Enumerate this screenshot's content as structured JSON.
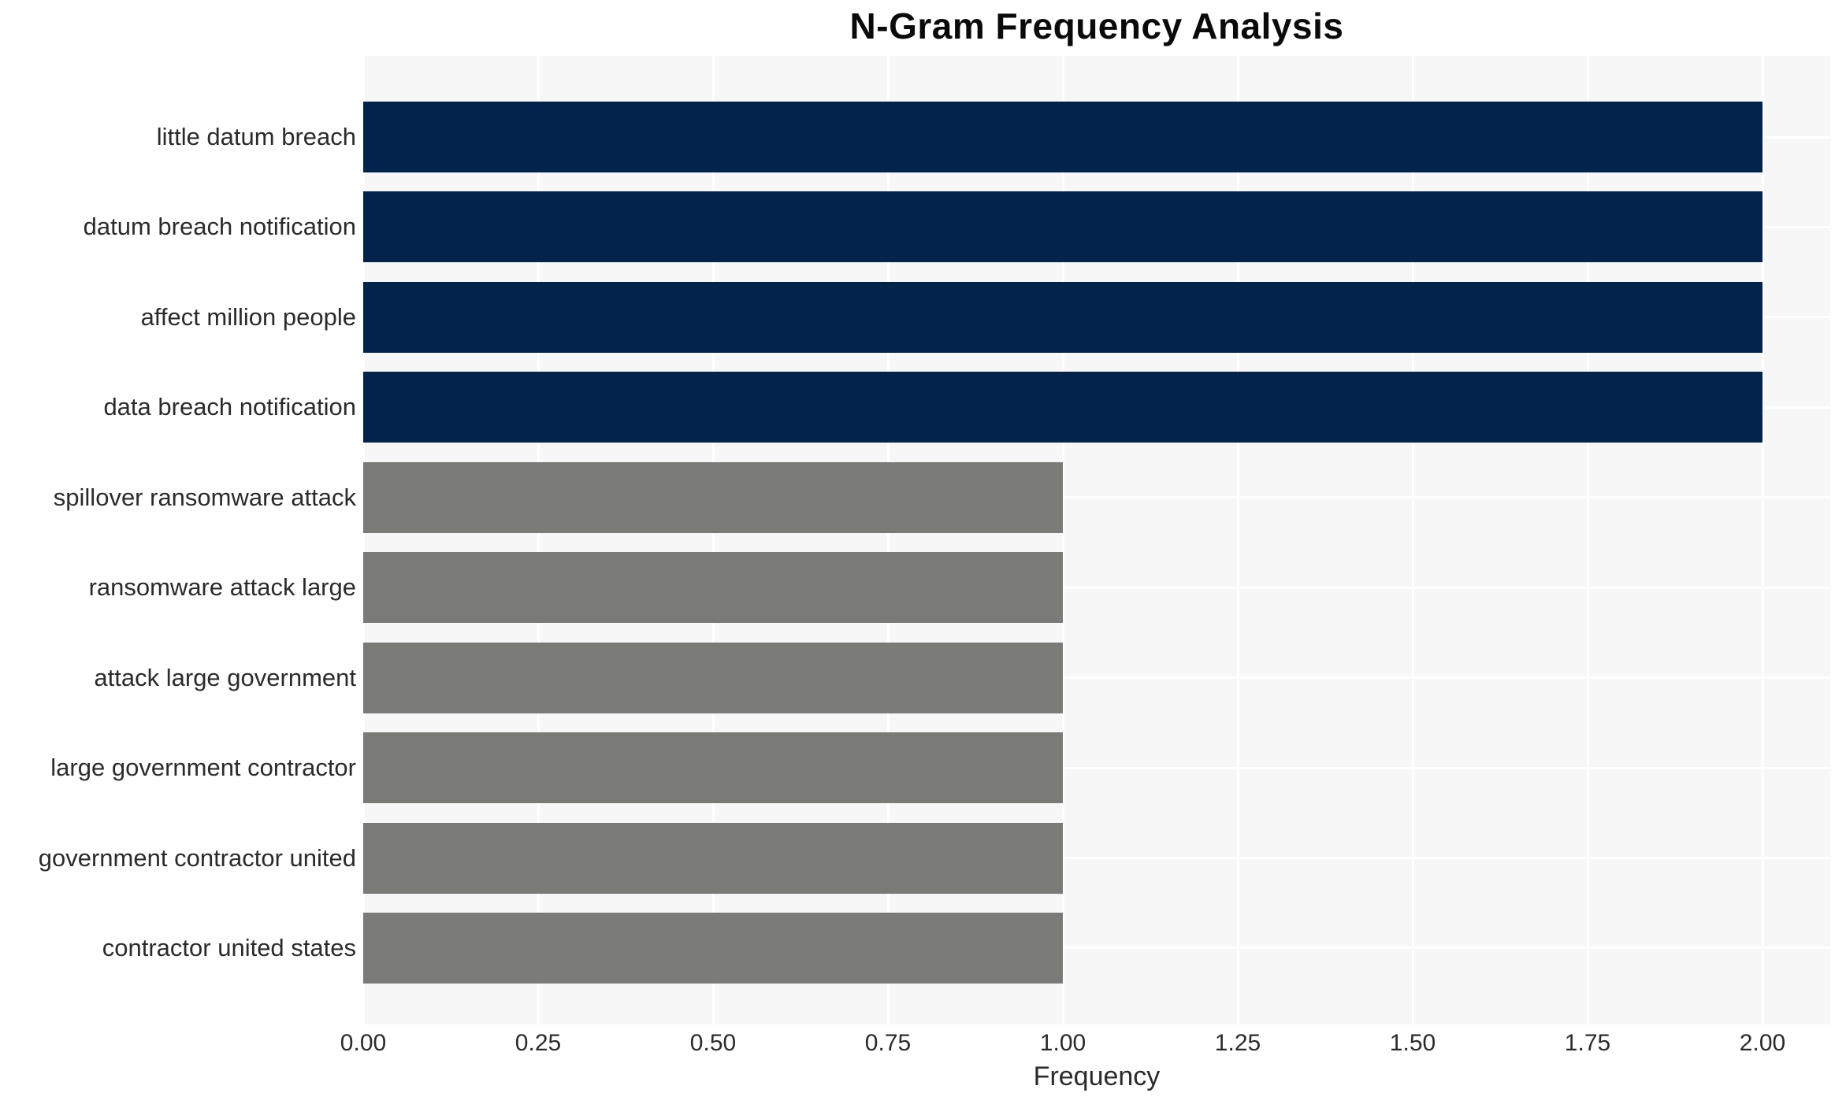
{
  "chart_data": {
    "type": "bar",
    "orientation": "horizontal",
    "title": "N-Gram Frequency Analysis",
    "xlabel": "Frequency",
    "ylabel": "",
    "categories": [
      "little datum breach",
      "datum breach notification",
      "affect million people",
      "data breach notification",
      "spillover ransomware attack",
      "ransomware attack large",
      "attack large government",
      "large government contractor",
      "government contractor united",
      "contractor united states"
    ],
    "values": [
      2,
      2,
      2,
      2,
      1,
      1,
      1,
      1,
      1,
      1
    ],
    "bar_colors": [
      "#02234C",
      "#02234C",
      "#02234C",
      "#02234C",
      "#7A7A76",
      "#7A7A76",
      "#7A7A76",
      "#7A7A76",
      "#7A7A76",
      "#7A7A76"
    ],
    "xtick_labels": [
      "0.00",
      "0.25",
      "0.50",
      "0.75",
      "1.00",
      "1.25",
      "1.50",
      "1.75",
      "2.00"
    ],
    "xtick_values": [
      0,
      0.25,
      0.5,
      0.75,
      1.0,
      1.25,
      1.5,
      1.75,
      2.0
    ],
    "xlim": [
      0,
      2.1
    ],
    "grid": "on",
    "legend": "none",
    "colors": {
      "navy_bar": "#02234C",
      "gray_bar": "#7A7A76",
      "plot_background": "#F7F7F8",
      "gridline": "#FFFFFF",
      "tick_text": "#2B2B2B",
      "title_text": "#0A0A0A",
      "page_background": "#FFFFFF"
    }
  }
}
